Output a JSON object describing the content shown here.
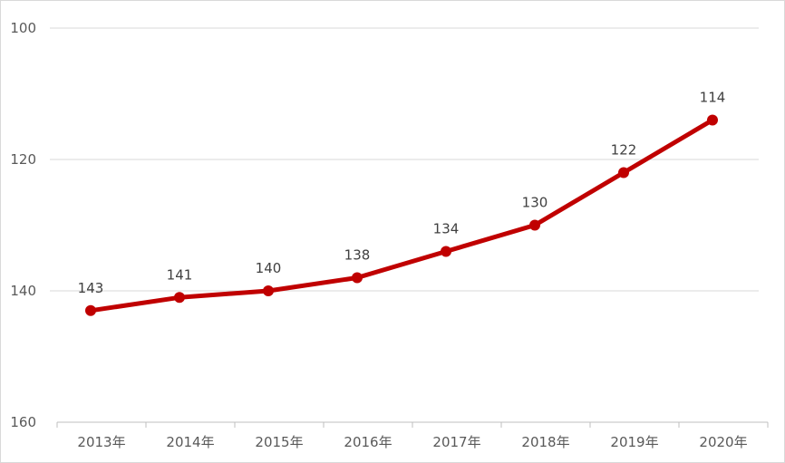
{
  "chart_data": {
    "type": "line",
    "title": "",
    "xlabel": "",
    "ylabel": "",
    "y_axis_reversed": true,
    "ylim": [
      100,
      160
    ],
    "yticks": [
      100,
      120,
      140,
      160
    ],
    "grid": true,
    "legend": "none",
    "categories": [
      "2013年",
      "2014年",
      "2015年",
      "2016年",
      "2017年",
      "2018年",
      "2019年",
      "2020年"
    ],
    "series": [
      {
        "color": "#c00000",
        "values": [
          143,
          141,
          140,
          138,
          134,
          130,
          122,
          114
        ],
        "data_labels": [
          "143",
          "141",
          "140",
          "138",
          "134",
          "130",
          "122",
          "114"
        ]
      }
    ]
  },
  "colors": {
    "line": "#c00000",
    "grid": "#d9d9d9",
    "axis": "#bfbfbf",
    "tick_text": "#595959",
    "label_text": "#404040"
  }
}
